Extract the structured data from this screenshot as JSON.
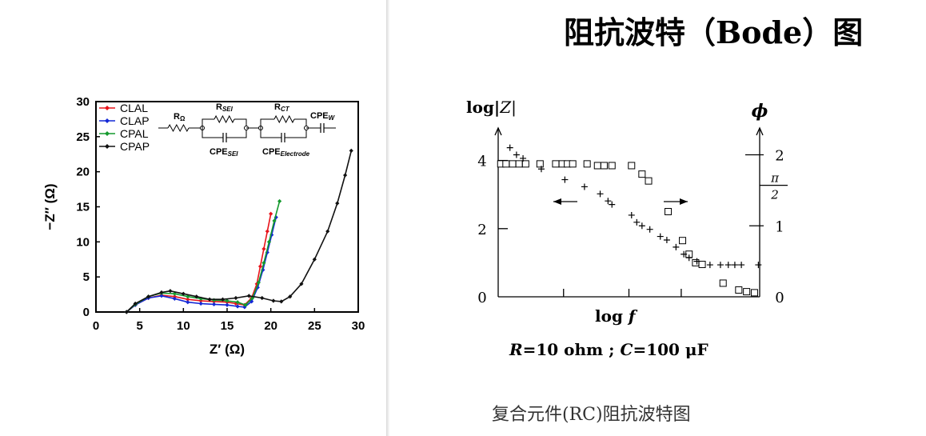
{
  "slide": {
    "title": "阻抗波特（Bode）图",
    "caption": "复合元件(RC)阻抗波特图"
  },
  "icons": {
    "marker_nyquist": "diamond",
    "marker_bode_mag": "hollow-square",
    "marker_bode_phase": "plus"
  },
  "chart_data": [
    {
      "type": "line",
      "title": "",
      "xlabel": "Z′ (Ω)",
      "ylabel": "−Z″ (Ω)",
      "xlim": [
        0,
        30
      ],
      "ylim": [
        0,
        30
      ],
      "xticks": [
        0,
        5,
        10,
        15,
        20,
        25,
        30
      ],
      "yticks": [
        0,
        5,
        10,
        15,
        20,
        25,
        30
      ],
      "grid": false,
      "legend": "top-left",
      "circuit_labels": {
        "r_ohm": "R",
        "r_ohm_sub": "Ω",
        "r_sei": "R",
        "r_sei_sub": "SEI",
        "r_ct": "R",
        "r_ct_sub": "CT",
        "cpe_w": "CPE",
        "cpe_w_sub": "W",
        "cpe_sei": "CPE",
        "cpe_sei_sub": "SEI",
        "cpe_el": "CPE",
        "cpe_el_sub": "Electrode"
      },
      "series": [
        {
          "name": "CLAL",
          "color": "#e8131a",
          "x": [
            3.5,
            4.5,
            6,
            7.5,
            9,
            10.5,
            12,
            13.5,
            15,
            16,
            17,
            17.8,
            18.4,
            18.8,
            19.2,
            19.6,
            20.0
          ],
          "y": [
            0.0,
            1.0,
            2.0,
            2.4,
            2.2,
            1.8,
            1.6,
            1.5,
            1.4,
            1.2,
            1.0,
            2.0,
            4.0,
            6.5,
            9.0,
            11.5,
            14.0
          ]
        },
        {
          "name": "CLAP",
          "color": "#1428d6",
          "x": [
            3.5,
            4.5,
            6,
            7.5,
            9,
            10.5,
            12,
            13.5,
            15,
            16.2,
            17.0,
            17.8,
            18.5,
            19.1,
            19.6,
            20.1,
            20.6
          ],
          "y": [
            0.0,
            1.0,
            2.0,
            2.3,
            1.9,
            1.4,
            1.2,
            1.1,
            1.0,
            0.8,
            0.7,
            1.5,
            3.5,
            6.0,
            8.5,
            11.0,
            13.5
          ]
        },
        {
          "name": "CPAL",
          "color": "#159a2e",
          "x": [
            3.5,
            4.5,
            6,
            7.5,
            9,
            10.5,
            12,
            13.5,
            15,
            16.2,
            17.1,
            17.9,
            18.6,
            19.2,
            19.8,
            20.4,
            21.0
          ],
          "y": [
            0.0,
            1.1,
            2.2,
            2.7,
            2.6,
            2.2,
            1.9,
            1.7,
            1.6,
            1.4,
            1.0,
            2.0,
            4.2,
            7.0,
            10.0,
            13.0,
            15.8
          ]
        },
        {
          "name": "CPAP",
          "color": "#111111",
          "x": [
            3.5,
            4.5,
            6,
            7.5,
            8.5,
            10,
            11.5,
            13,
            14.5,
            16,
            17.5,
            19,
            20.3,
            21.2,
            22.2,
            23.5,
            25,
            26.5,
            27.6,
            28.5,
            29.2
          ],
          "y": [
            0.0,
            1.2,
            2.2,
            2.8,
            3.0,
            2.6,
            2.2,
            1.8,
            1.8,
            2.0,
            2.3,
            2.0,
            1.6,
            1.5,
            2.2,
            4.0,
            7.5,
            11.5,
            15.5,
            19.5,
            23.0
          ]
        }
      ]
    },
    {
      "type": "scatter",
      "title": "",
      "xlabel": "log",
      "xlabel_var": "f",
      "ylabel": "log|",
      "ylabel_var": "Z",
      "ylabel_end": "|",
      "y2label": "ϕ",
      "subtitle_parts": [
        "R",
        "=10 ohm ; ",
        "C",
        "=100 μF"
      ],
      "yticks": [
        "0",
        "2",
        "4"
      ],
      "y2ticks": [
        "0",
        "1",
        "π",
        "2",
        "2"
      ],
      "xlim": [
        0,
        10
      ],
      "ylim": [
        0,
        5
      ],
      "y2lim": [
        0,
        2.4
      ],
      "grid": false,
      "series": [
        {
          "name": "log|Z|",
          "marker": "square",
          "x": [
            0.1,
            0.3,
            0.55,
            0.8,
            1.05,
            1.6,
            2.2,
            2.45,
            2.65,
            2.85,
            3.4,
            3.8,
            4.05,
            4.35,
            5.1,
            5.5,
            5.75,
            6.5,
            7.05,
            7.3,
            7.55,
            7.8,
            8.6,
            9.2,
            9.5,
            9.8
          ],
          "y": [
            3.9,
            3.9,
            3.9,
            3.9,
            3.9,
            3.9,
            3.9,
            3.9,
            3.9,
            3.9,
            3.9,
            3.85,
            3.85,
            3.85,
            3.85,
            3.6,
            3.4,
            2.5,
            1.65,
            1.25,
            1.0,
            0.95,
            0.4,
            0.2,
            0.15,
            0.12
          ]
        },
        {
          "name": "ϕ",
          "marker": "plus",
          "x": [
            0.45,
            0.7,
            0.95,
            1.65,
            2.55,
            3.3,
            3.9,
            4.2,
            4.35,
            5.1,
            5.3,
            5.5,
            5.8,
            6.2,
            6.45,
            6.8,
            7.1,
            7.3,
            7.6,
            8.1,
            8.5,
            8.8,
            9.05,
            9.3,
            9.95
          ],
          "y": [
            2.1,
            2.0,
            1.95,
            1.8,
            1.65,
            1.55,
            1.45,
            1.35,
            1.3,
            1.15,
            1.05,
            1.0,
            0.95,
            0.85,
            0.8,
            0.7,
            0.6,
            0.55,
            0.5,
            0.45,
            0.45,
            0.45,
            0.45,
            0.45,
            0.45
          ]
        }
      ]
    }
  ]
}
